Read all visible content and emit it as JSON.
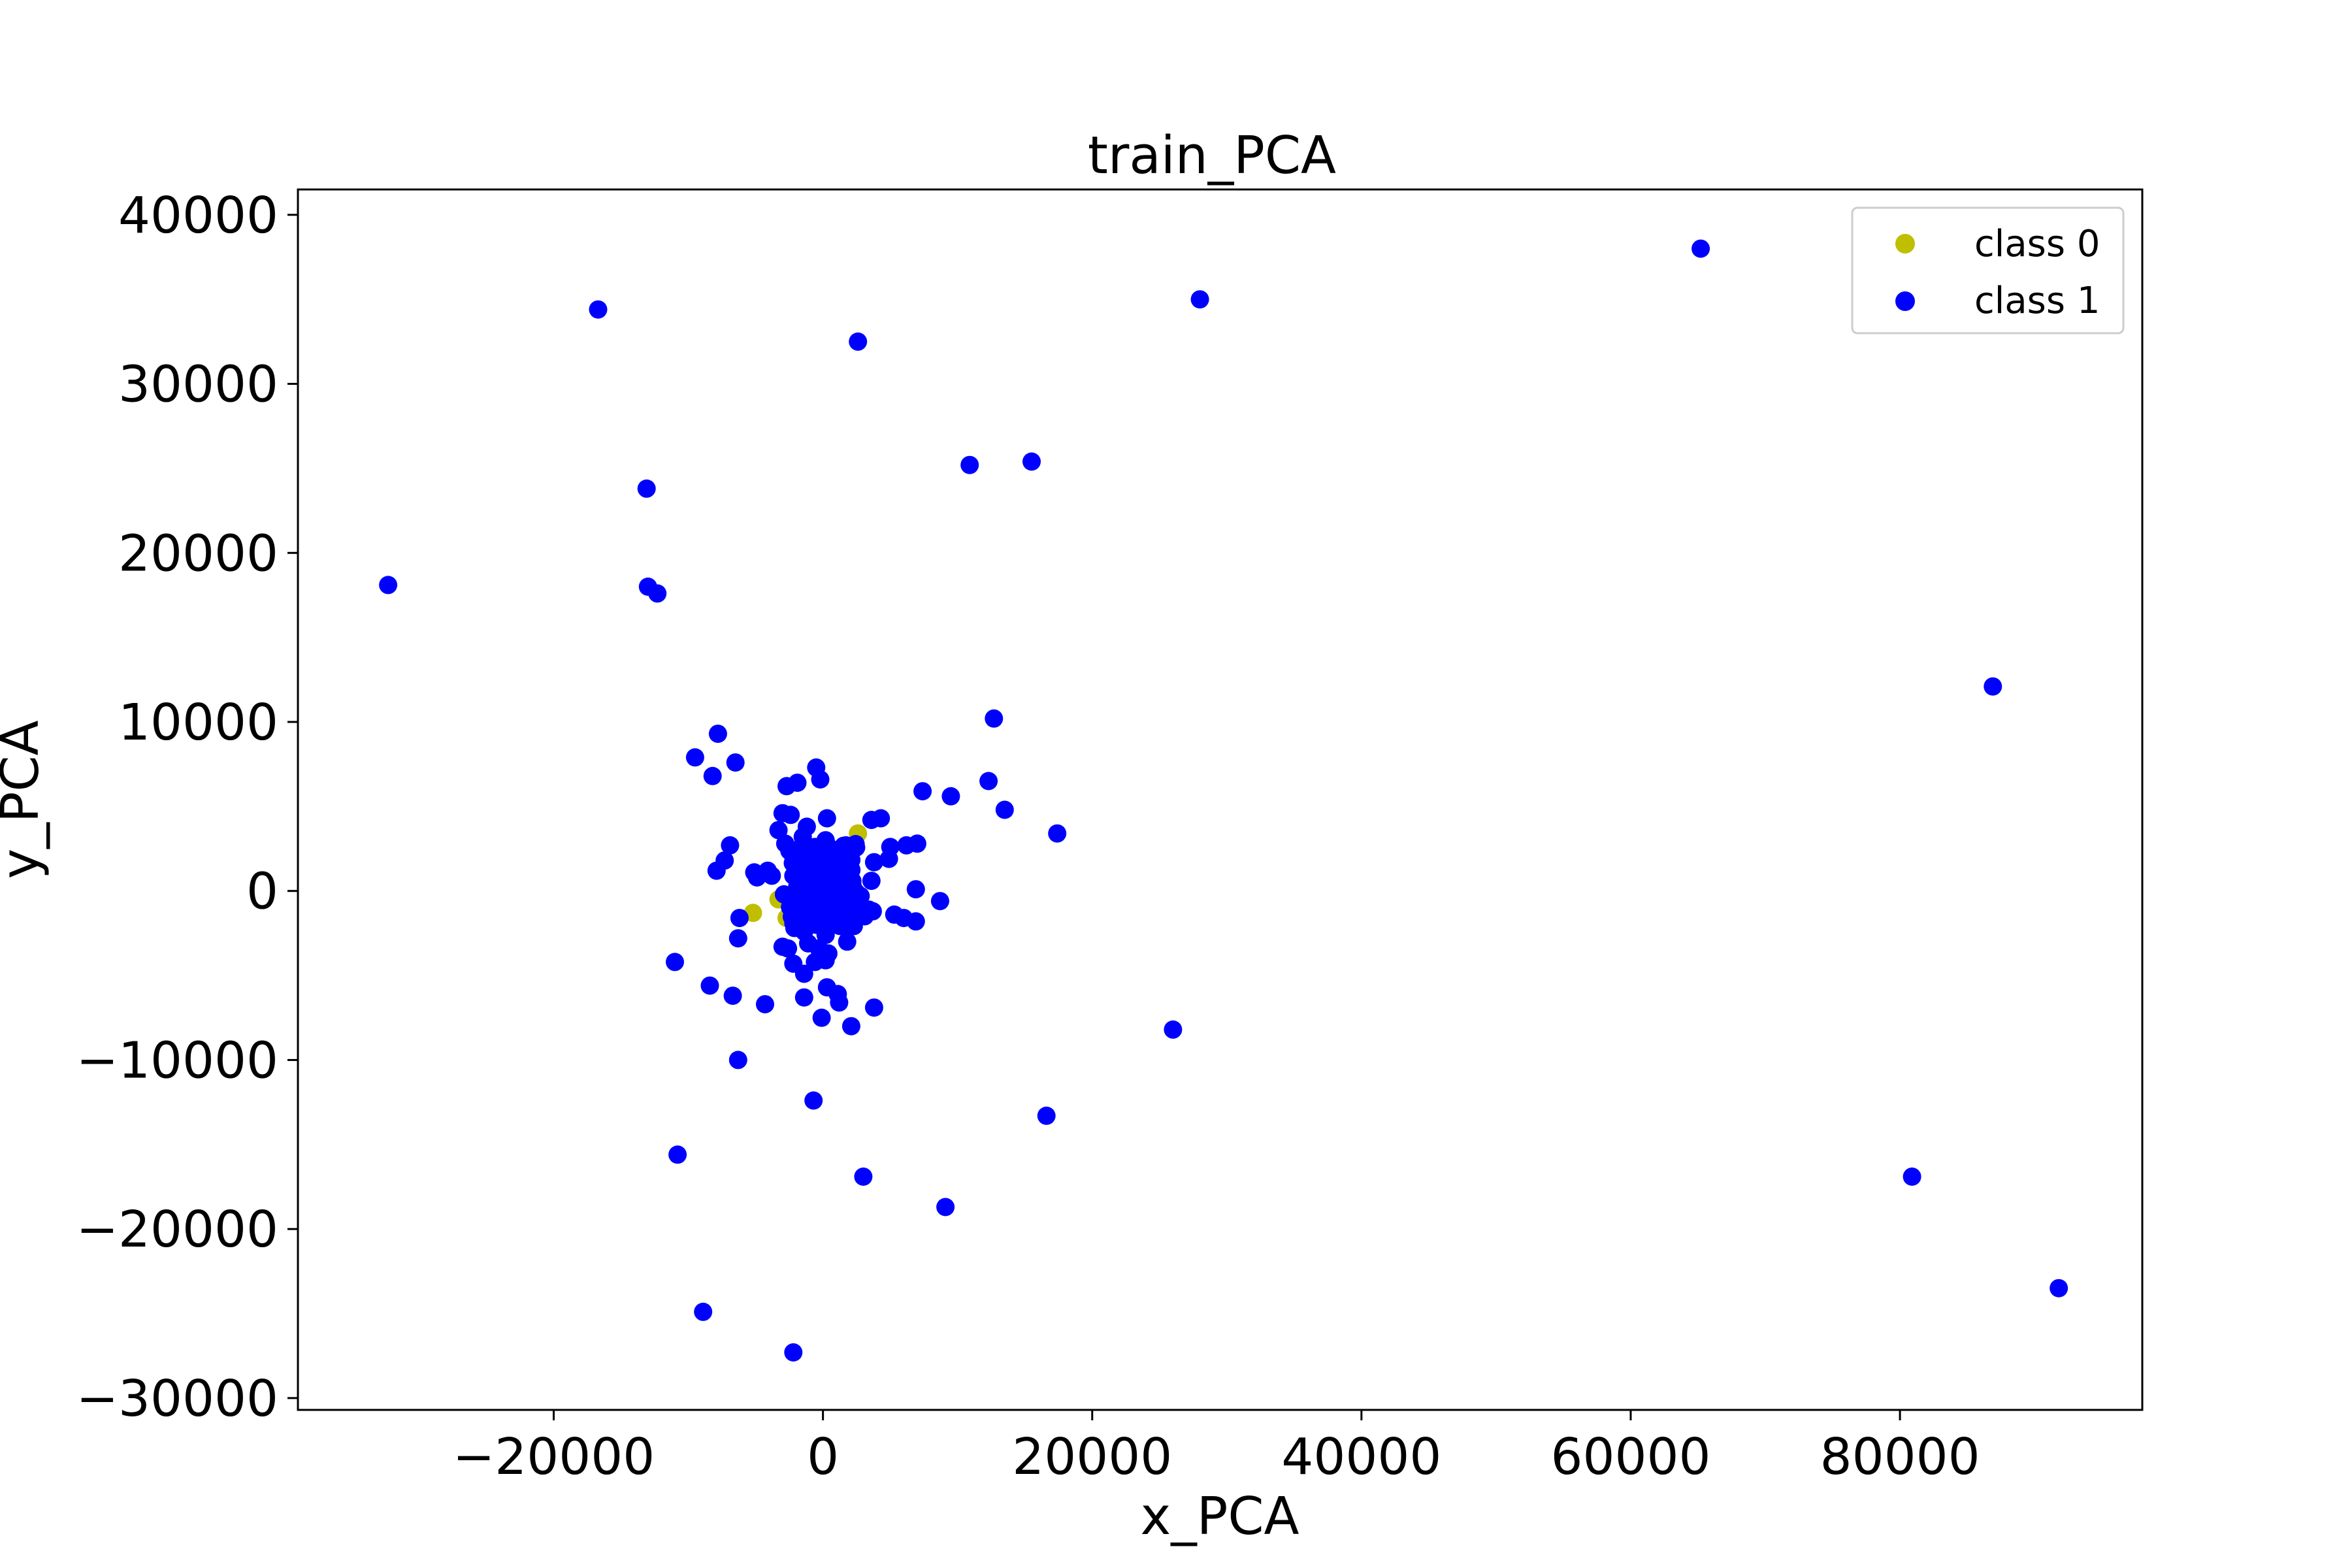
{
  "chart_data": {
    "type": "scatter",
    "title": "train_PCA",
    "xlabel": "x_PCA",
    "ylabel": "y_PCA",
    "xlim": [
      -39000,
      98000
    ],
    "ylim": [
      -30700,
      41500
    ],
    "xticks": [
      -20000,
      0,
      20000,
      40000,
      60000,
      80000
    ],
    "yticks": [
      -30000,
      -20000,
      -10000,
      0,
      10000,
      20000,
      30000,
      40000
    ],
    "xtick_labels": [
      "−20000",
      "0",
      "20000",
      "40000",
      "60000",
      "80000"
    ],
    "ytick_labels": [
      "−30000",
      "−20000",
      "−10000",
      "0",
      "10000",
      "20000",
      "30000",
      "40000"
    ],
    "grid": false,
    "legend_position": "top-right",
    "series": [
      {
        "name": "class 0",
        "color": "#bfbf00",
        "points": [
          [
            -5200,
            -1300
          ],
          [
            -3300,
            -500
          ],
          [
            -2700,
            -1600
          ],
          [
            2600,
            3400
          ],
          [
            -1500,
            1800
          ],
          [
            -700,
            -900
          ],
          [
            300,
            600
          ],
          [
            1100,
            -300
          ]
        ]
      },
      {
        "name": "class 1",
        "color": "#0000ff",
        "points": [
          [
            65200,
            38000
          ],
          [
            28000,
            35000
          ],
          [
            -16700,
            34400
          ],
          [
            2600,
            32500
          ],
          [
            10900,
            25200
          ],
          [
            15500,
            25400
          ],
          [
            -13100,
            23800
          ],
          [
            -32300,
            18100
          ],
          [
            -13000,
            18000
          ],
          [
            -12300,
            17600
          ],
          [
            86900,
            12100
          ],
          [
            12700,
            10200
          ],
          [
            -7800,
            9300
          ],
          [
            -9500,
            7900
          ],
          [
            -8200,
            6800
          ],
          [
            -6500,
            7600
          ],
          [
            -500,
            7300
          ],
          [
            -200,
            6600
          ],
          [
            -2700,
            6200
          ],
          [
            -1900,
            6400
          ],
          [
            7400,
            5900
          ],
          [
            9500,
            5600
          ],
          [
            12300,
            6500
          ],
          [
            13500,
            4800
          ],
          [
            17400,
            3400
          ],
          [
            -3000,
            4600
          ],
          [
            -2400,
            4500
          ],
          [
            3600,
            4200
          ],
          [
            4300,
            4300
          ],
          [
            300,
            4300
          ],
          [
            -1200,
            3800
          ],
          [
            -3300,
            3600
          ],
          [
            5000,
            2600
          ],
          [
            6200,
            2700
          ],
          [
            7000,
            2800
          ],
          [
            -6900,
            2700
          ],
          [
            -7300,
            1800
          ],
          [
            -7900,
            1200
          ],
          [
            -4900,
            800
          ],
          [
            -4100,
            1200
          ],
          [
            -5100,
            1100
          ],
          [
            4900,
            1900
          ],
          [
            3800,
            1700
          ],
          [
            3600,
            600
          ],
          [
            -3800,
            900
          ],
          [
            -2800,
            2800
          ],
          [
            -1900,
            2100
          ],
          [
            -1400,
            1500
          ],
          [
            -2200,
            900
          ],
          [
            -1100,
            200
          ],
          [
            -600,
            900
          ],
          [
            -200,
            1700
          ],
          [
            300,
            2200
          ],
          [
            800,
            1300
          ],
          [
            1400,
            800
          ],
          [
            1900,
            1500
          ],
          [
            2200,
            300
          ],
          [
            -2900,
            -200
          ],
          [
            -2400,
            -700
          ],
          [
            -1700,
            -1300
          ],
          [
            -900,
            -600
          ],
          [
            -300,
            -1200
          ],
          [
            400,
            -400
          ],
          [
            900,
            -900
          ],
          [
            1500,
            -1600
          ],
          [
            2000,
            -700
          ],
          [
            2800,
            -300
          ],
          [
            3400,
            -1100
          ],
          [
            3100,
            -1500
          ],
          [
            3700,
            -1200
          ],
          [
            8700,
            -600
          ],
          [
            5300,
            -1400
          ],
          [
            6000,
            -1600
          ],
          [
            6900,
            -1800
          ],
          [
            6900,
            100
          ],
          [
            -600,
            2600
          ],
          [
            1700,
            2700
          ],
          [
            -1500,
            3200
          ],
          [
            200,
            3000
          ],
          [
            -2200,
            -1900
          ],
          [
            -1400,
            -2400
          ],
          [
            -500,
            -2000
          ],
          [
            200,
            -2600
          ],
          [
            900,
            -1700
          ],
          [
            1700,
            -2200
          ],
          [
            -6200,
            -1600
          ],
          [
            -6300,
            -2800
          ],
          [
            -3000,
            -3300
          ],
          [
            -2600,
            -3400
          ],
          [
            -1100,
            -3100
          ],
          [
            -300,
            -3400
          ],
          [
            400,
            -3700
          ],
          [
            -600,
            -4200
          ],
          [
            200,
            -4100
          ],
          [
            -2200,
            -4300
          ],
          [
            -1400,
            -4900
          ],
          [
            1800,
            -3000
          ],
          [
            -11000,
            -4200
          ],
          [
            -8400,
            -5600
          ],
          [
            -6700,
            -6200
          ],
          [
            -4300,
            -6700
          ],
          [
            -1400,
            -6300
          ],
          [
            300,
            -5700
          ],
          [
            1100,
            -6100
          ],
          [
            1200,
            -6600
          ],
          [
            3800,
            -6900
          ],
          [
            -100,
            -7500
          ],
          [
            2100,
            -8000
          ],
          [
            26000,
            -8200
          ],
          [
            -6300,
            -10000
          ],
          [
            -700,
            -12400
          ],
          [
            16600,
            -13300
          ],
          [
            -10800,
            -15600
          ],
          [
            3000,
            -16900
          ],
          [
            80900,
            -16900
          ],
          [
            9100,
            -18700
          ],
          [
            91800,
            -23500
          ],
          [
            -8900,
            -24900
          ],
          [
            -2200,
            -27300
          ]
        ]
      }
    ],
    "cluster_core": {
      "series": "class 1",
      "x_range": [
        -2500,
        2500
      ],
      "y_range": [
        -2200,
        2800
      ]
    }
  }
}
